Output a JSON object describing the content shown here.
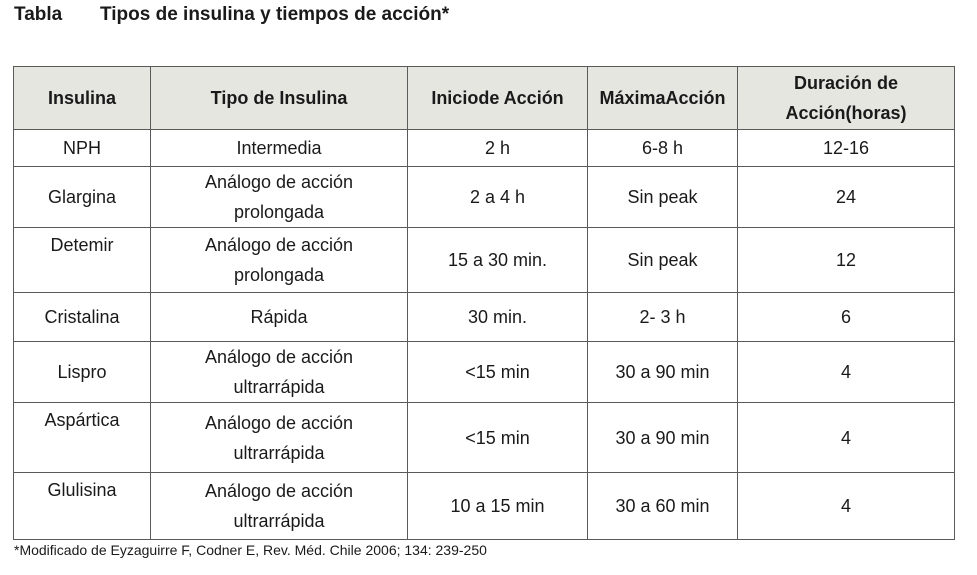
{
  "caption": {
    "label": "Tabla",
    "title": "Tipos de insulina y tiempos de acción*"
  },
  "table": {
    "headers": [
      [
        "Insulina"
      ],
      [
        "Tipo de Insulina"
      ],
      [
        "Inicio",
        "de Acción"
      ],
      [
        "Máxima",
        "Acción"
      ],
      [
        "Duración de Acción",
        "(horas)"
      ]
    ],
    "rows": [
      [
        [
          "NPH"
        ],
        [
          "Intermedia"
        ],
        [
          "2 h"
        ],
        [
          "6-8 h"
        ],
        [
          "12-16"
        ]
      ],
      [
        [
          "Glargina"
        ],
        [
          "Análogo de acción",
          "prolongada"
        ],
        [
          "2 a 4 h"
        ],
        [
          "Sin peak"
        ],
        [
          "24"
        ]
      ],
      [
        [
          "Detemir"
        ],
        [
          "Análogo de acción",
          "prolongada"
        ],
        [
          "15 a 30 min."
        ],
        [
          "Sin peak"
        ],
        [
          "12"
        ]
      ],
      [
        [
          "Cristalina"
        ],
        [
          "Rápida"
        ],
        [
          "30 min."
        ],
        [
          "2- 3 h"
        ],
        [
          "6"
        ]
      ],
      [
        [
          "Lispro"
        ],
        [
          "Análogo de acción",
          "ultrarrápida"
        ],
        [
          "<15 min"
        ],
        [
          "30 a 90 min"
        ],
        [
          "4"
        ]
      ],
      [
        [
          "Aspártica"
        ],
        [
          "Análogo de acción",
          "ultrarrápida"
        ],
        [
          "<15 min"
        ],
        [
          "30 a 90 min"
        ],
        [
          "4"
        ]
      ],
      [
        [
          "Glulisina"
        ],
        [
          "Análogo de acción",
          "ultrarrápida"
        ],
        [
          "10 a 15 min"
        ],
        [
          "30 a 60 min"
        ],
        [
          "4"
        ]
      ]
    ]
  },
  "footnote": "*Modificado de Eyzaguirre F, Codner E, Rev. Méd. Chile 2006; 134: 239-250"
}
